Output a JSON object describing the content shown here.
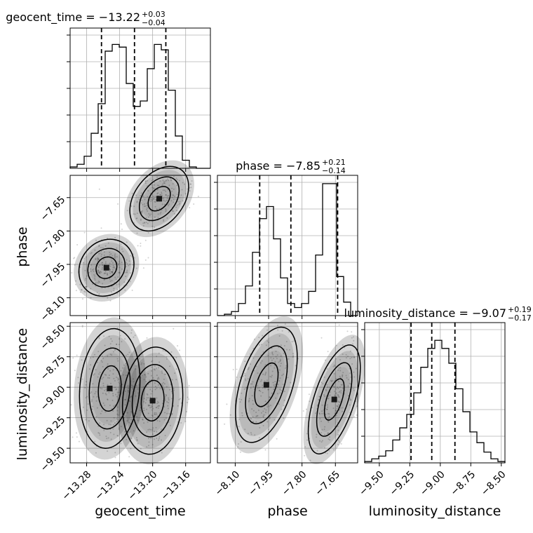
{
  "chart_data": {
    "type": "corner",
    "parameters": [
      {
        "name": "geocent_time",
        "axis_label": "geocent_time",
        "ticks": [
          "−13.28",
          "−13.24",
          "−13.20",
          "−13.16"
        ],
        "tick_values": [
          -13.28,
          -13.24,
          -13.2,
          -13.16
        ],
        "range": [
          -13.3,
          -13.13
        ]
      },
      {
        "name": "phase",
        "axis_label": "phase",
        "ticks": [
          "−8.10",
          "−7.95",
          "−7.80",
          "−7.65"
        ],
        "tick_values": [
          -8.1,
          -7.95,
          -7.8,
          -7.65
        ],
        "range": [
          -8.18,
          -7.55
        ]
      },
      {
        "name": "luminosity_distance",
        "axis_label": "luminosity_distance",
        "ticks": [
          "−9.50",
          "−9.25",
          "−9.00",
          "−8.75",
          "−8.50"
        ],
        "tick_values": [
          -9.5,
          -9.25,
          -9.0,
          -8.75,
          -8.5
        ],
        "range": [
          -9.62,
          -8.47
        ]
      }
    ],
    "titles": [
      {
        "text": "geocent_time = −13.22",
        "sup": "+0.03",
        "sub": "−0.04"
      },
      {
        "text": "phase = −7.85",
        "sup": "+0.21",
        "sub": "−0.14"
      },
      {
        "text": "luminosity_distance = −9.07",
        "sup": "+0.19",
        "sub": "−0.17"
      }
    ],
    "quantiles": [
      [
        -13.262,
        -13.222,
        -13.184
      ],
      [
        -7.99,
        -7.85,
        -7.64
      ],
      [
        -9.24,
        -9.07,
        -8.88
      ]
    ],
    "histograms": [
      {
        "edges_range": [
          -13.3,
          -13.13
        ],
        "counts": [
          0.01,
          0.03,
          0.09,
          0.26,
          0.48,
          0.87,
          0.92,
          0.9,
          0.63,
          0.46,
          0.5,
          0.74,
          0.92,
          0.88,
          0.58,
          0.24,
          0.06,
          0.01,
          0.0,
          0.0
        ]
      },
      {
        "edges_range": [
          -8.18,
          -7.55
        ],
        "counts": [
          0.0,
          0.01,
          0.03,
          0.09,
          0.22,
          0.47,
          0.72,
          0.81,
          0.57,
          0.28,
          0.09,
          0.06,
          0.09,
          0.18,
          0.45,
          0.98,
          0.98,
          0.29,
          0.1,
          0.0
        ]
      },
      {
        "edges_range": [
          -9.62,
          -8.47
        ],
        "counts": [
          0.01,
          0.03,
          0.05,
          0.09,
          0.17,
          0.26,
          0.36,
          0.52,
          0.71,
          0.85,
          0.91,
          0.85,
          0.74,
          0.55,
          0.38,
          0.23,
          0.15,
          0.08,
          0.03,
          0.01
        ]
      }
    ],
    "modes_2d": [
      {
        "pair": [
          1,
          0
        ],
        "modes": [
          {
            "center": [
              -13.192,
              -7.655
            ],
            "spread": [
              0.017,
              0.042
            ]
          },
          {
            "center": [
              -13.256,
              -7.965
            ],
            "spread": [
              0.014,
              0.045
            ]
          }
        ]
      },
      {
        "pair": [
          2,
          0
        ],
        "modes": [
          {
            "center": [
              -13.252,
              -9.01
            ],
            "spread": [
              0.014,
              0.19
            ]
          },
          {
            "center": [
              -13.2,
              -9.11
            ],
            "spread": [
              0.014,
              0.17
            ]
          }
        ]
      },
      {
        "pair": [
          2,
          1
        ],
        "modes": [
          {
            "center": [
              -7.96,
              -8.98
            ],
            "spread": [
              0.045,
              0.19
            ]
          },
          {
            "center": [
              -7.655,
              -9.1
            ],
            "spread": [
              0.035,
              0.18
            ]
          }
        ]
      }
    ],
    "grid": true
  }
}
